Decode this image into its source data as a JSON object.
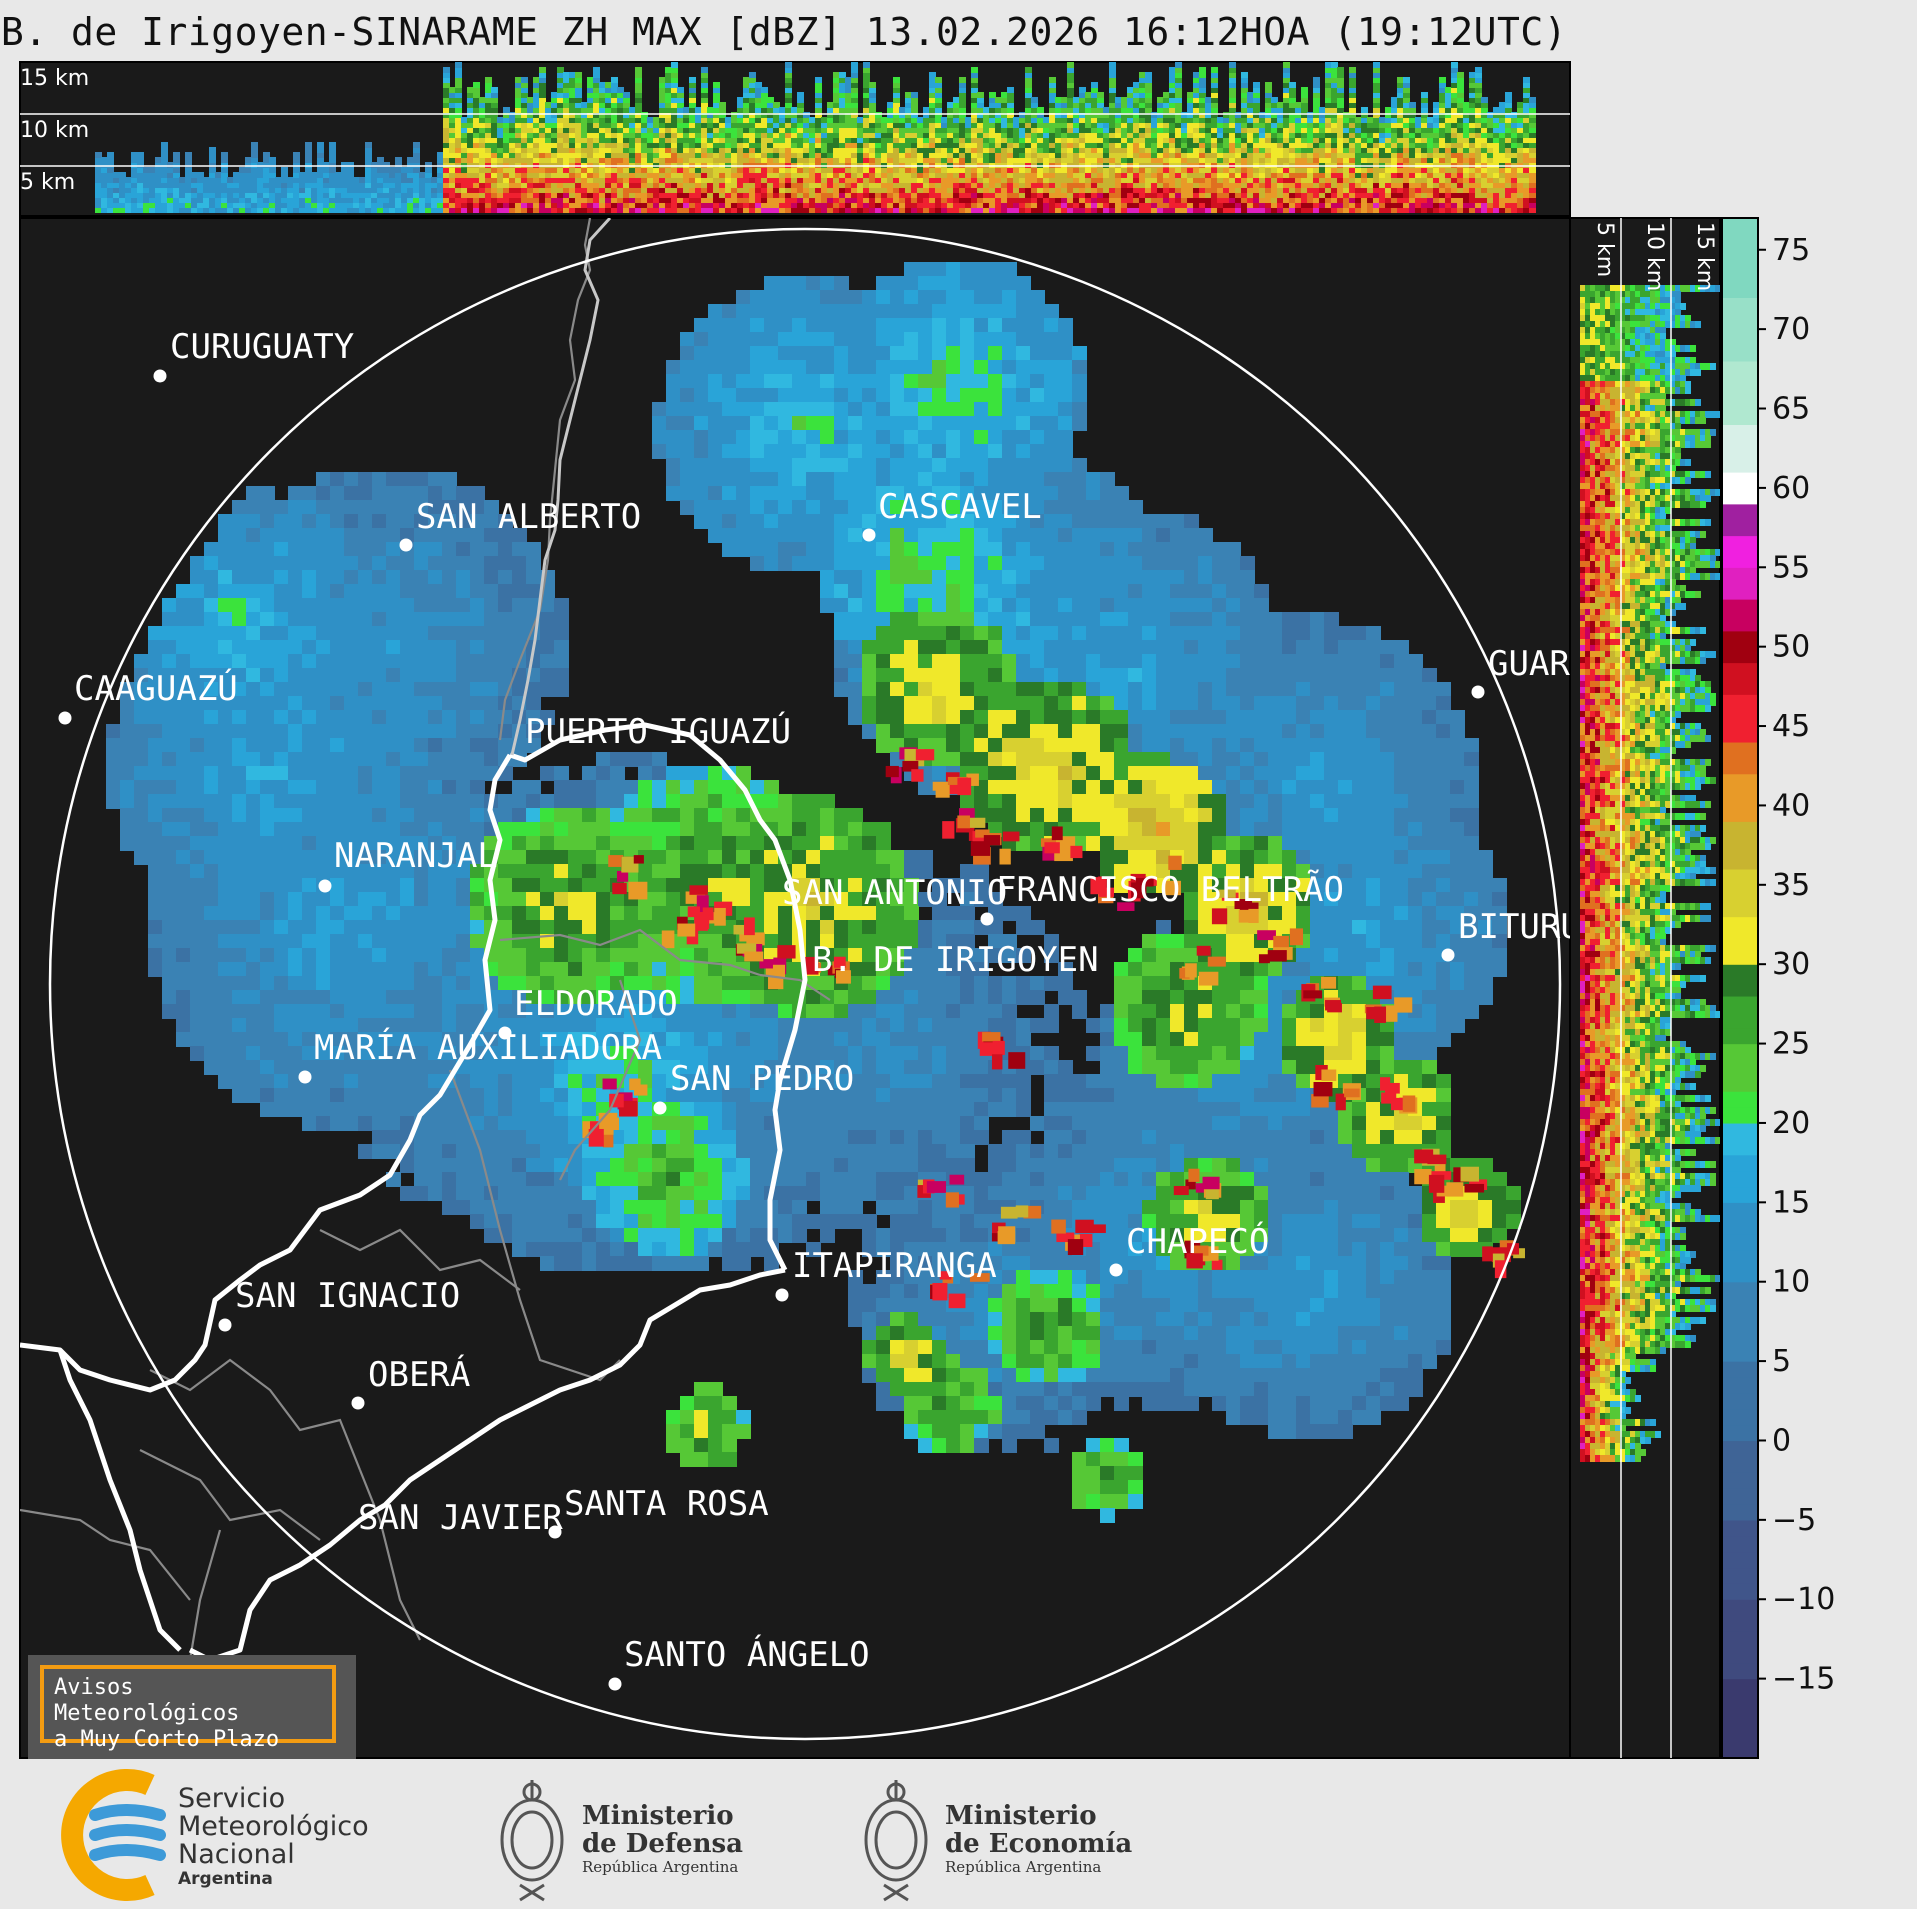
{
  "title": "B. de Irigoyen-SINARAME ZH MAX [dBZ] 13.02.2026 16:12HOA (19:12UTC)",
  "top_panel": {
    "height_labels": [
      "15 km",
      "10 km",
      "5 km"
    ]
  },
  "side_panel": {
    "height_labels": [
      "5 km",
      "10 km",
      "15 km"
    ]
  },
  "colorbar": {
    "unit": "dBZ",
    "ticks": [
      "75",
      "70",
      "65",
      "60",
      "55",
      "50",
      "45",
      "40",
      "35",
      "30",
      "25",
      "20",
      "15",
      "10",
      "5",
      "0",
      "−5",
      "−10",
      "−15"
    ],
    "range": [
      -20,
      77
    ]
  },
  "cities": [
    {
      "name": "CURUGUATY"
    },
    {
      "name": "SAN ALBERTO"
    },
    {
      "name": "CASCAVEL"
    },
    {
      "name": "CAAGUAZÚ"
    },
    {
      "name": "GUARA"
    },
    {
      "name": "PUERTO IGUAZÚ"
    },
    {
      "name": "NARANJAL"
    },
    {
      "name": "SAN ANTONIO"
    },
    {
      "name": "FRANCISCO BELTRÃO"
    },
    {
      "name": "BITURU"
    },
    {
      "name": "B. DE IRIGOYEN"
    },
    {
      "name": "ELDORADO"
    },
    {
      "name": "MARÍA AUXILIADORA"
    },
    {
      "name": "SAN PEDRO"
    },
    {
      "name": "CHAPECÓ"
    },
    {
      "name": "ITAPIRANGA"
    },
    {
      "name": "SAN IGNACIO"
    },
    {
      "name": "OBERÁ"
    },
    {
      "name": "SAN JAVIER"
    },
    {
      "name": "SANTA ROSA"
    },
    {
      "name": "SANTO ÁNGELO"
    }
  ],
  "warning": {
    "line1": "Avisos Meteorológicos",
    "line2": "a Muy Corto Plazo",
    "border_color": "#f39c12"
  },
  "footer": {
    "smn": {
      "line1": "Servicio",
      "line2": "Meteorológico",
      "line3": "Nacional",
      "line4": "Argentina"
    },
    "defensa": {
      "line1": "Ministerio",
      "line2": "de Defensa",
      "line3": "República Argentina"
    },
    "economia": {
      "line1": "Ministerio",
      "line2": "de Economía",
      "line3": "República Argentina"
    }
  },
  "colors": {
    "background": "#1a1a1a",
    "page": "#e8e8e8",
    "range_ring": "#ffffff",
    "border": "#ffffff"
  }
}
